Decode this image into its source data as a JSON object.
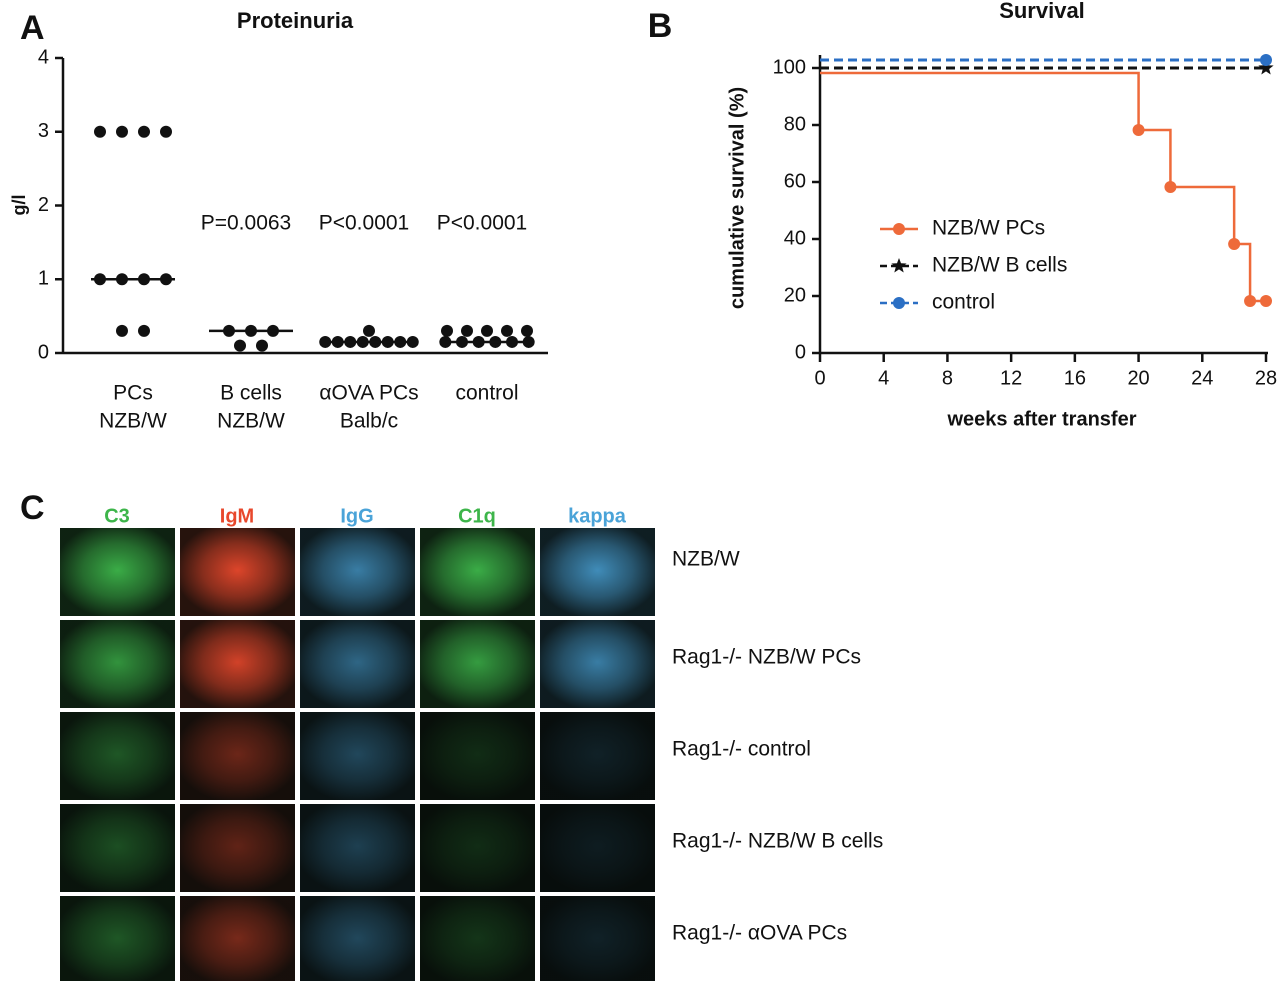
{
  "chart_data": [
    {
      "type": "dot",
      "panel_label": "A",
      "title": "Proteinuria",
      "y_label": "g/l",
      "categories": [
        [
          "PCs",
          "NZB/W"
        ],
        [
          "B cells",
          "NZB/W"
        ],
        [
          "αOVA PCs",
          "Balb/c"
        ],
        [
          "control"
        ]
      ],
      "values": [
        [
          3,
          3,
          3,
          3,
          1,
          1,
          1,
          1,
          0.3,
          0.3
        ],
        [
          0.3,
          0.3,
          0.3,
          0.1,
          0.1
        ],
        [
          0.3,
          0.15,
          0.15,
          0.15,
          0.15,
          0.15,
          0.15,
          0.15,
          0.15
        ],
        [
          0.3,
          0.3,
          0.3,
          0.3,
          0.3,
          0.15,
          0.15,
          0.15,
          0.15,
          0.15,
          0.15
        ]
      ],
      "medians": [
        1,
        0.3,
        0.15,
        0.15
      ],
      "annotations": [
        null,
        "P=0.0063",
        "P<0.0001",
        "P<0.0001"
      ],
      "color": "#111111",
      "ylim": [
        0,
        4
      ],
      "yticks": [
        0,
        1,
        2,
        3,
        4
      ]
    },
    {
      "type": "step",
      "panel_label": "B",
      "title": "Survival",
      "x_label": "weeks after transfer",
      "y_label": "cumulative survival (%)",
      "series": [
        {
          "name": "NZB/W PCs",
          "color": "#ee6a3a",
          "dash": false,
          "marker": "circle",
          "x": [
            0,
            20,
            22,
            26,
            27,
            28
          ],
          "values": [
            100,
            80,
            60,
            40,
            20,
            20
          ]
        },
        {
          "name": "NZB/W B cells",
          "color": "#111111",
          "dash": true,
          "marker": "star",
          "x": [
            0,
            28
          ],
          "values": [
            100,
            100
          ]
        },
        {
          "name": "control",
          "color": "#2b6fc4",
          "dash": true,
          "marker": "circle",
          "x": [
            0,
            28
          ],
          "values": [
            100,
            100
          ]
        }
      ],
      "xlim": [
        0,
        28
      ],
      "xticks": [
        0,
        4,
        8,
        12,
        16,
        20,
        24,
        28
      ],
      "ylim": [
        0,
        100
      ],
      "yticks": [
        0,
        20,
        40,
        60,
        80,
        100
      ]
    }
  ],
  "micrographs": {
    "panel_label": "C",
    "columns": [
      {
        "name": "C3",
        "color": "#3db54a"
      },
      {
        "name": "IgM",
        "color": "#e8482c"
      },
      {
        "name": "IgG",
        "color": "#4aa3d8"
      },
      {
        "name": "C1q",
        "color": "#3db54a"
      },
      {
        "name": "kappa",
        "color": "#4aa3d8"
      }
    ],
    "rows": [
      "NZB/W",
      "Rag1-/- NZB/W PCs",
      "Rag1-/- control",
      "Rag1-/- NZB/W B cells",
      "Rag1-/- αOVA PCs"
    ]
  }
}
